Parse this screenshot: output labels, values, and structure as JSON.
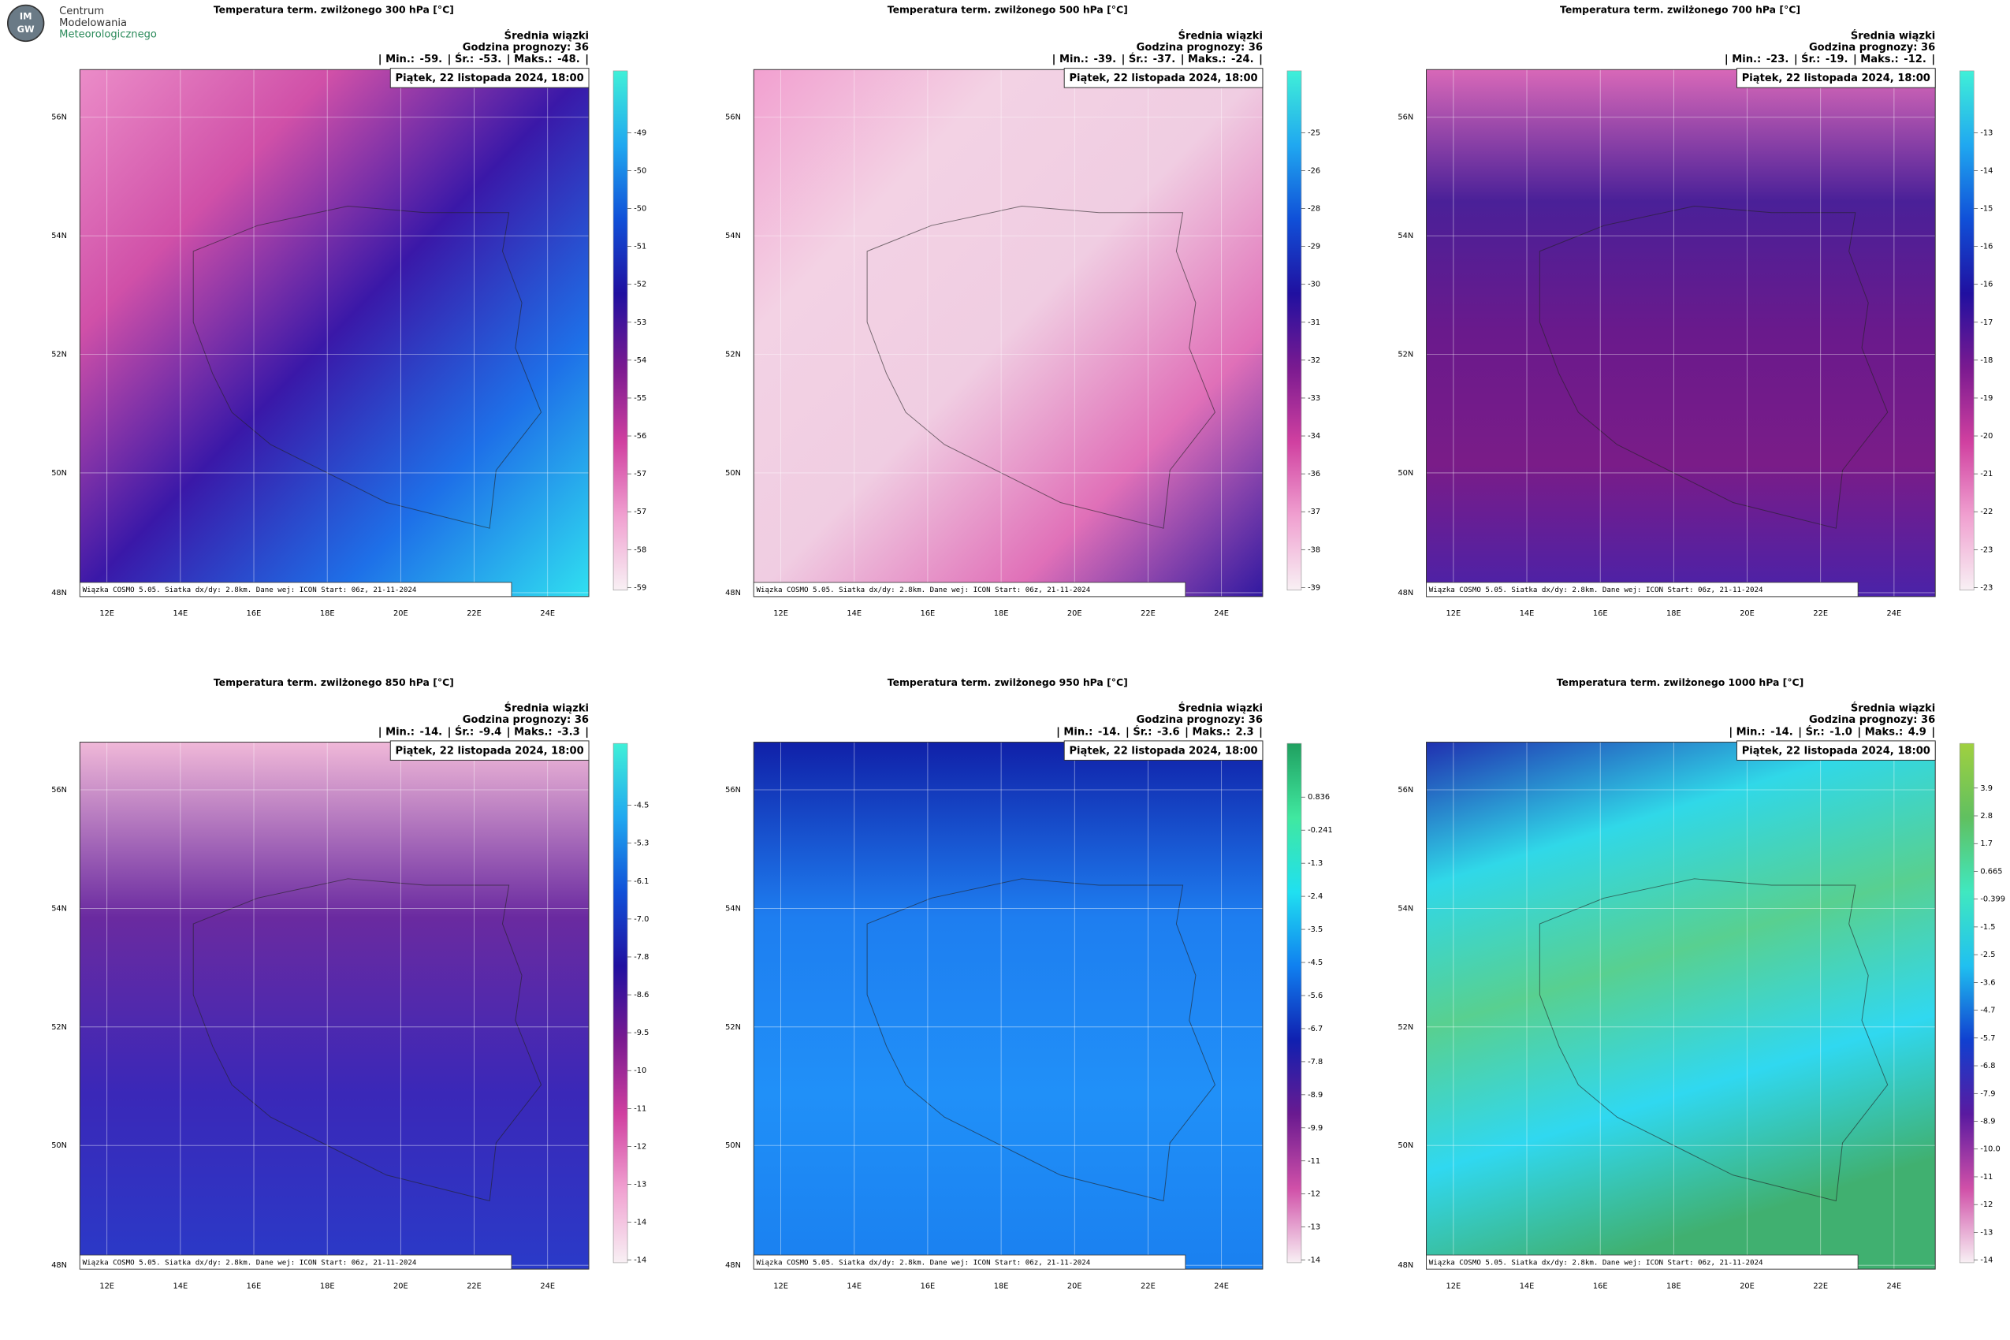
{
  "header": {
    "logo": {
      "abbr_top": "IM",
      "abbr_bottom": "GW",
      "lines": [
        "Centrum",
        "Modelowania",
        "Meteorologicznego"
      ]
    }
  },
  "common": {
    "ensemble": "Średnia wiązki",
    "forecast_hour": "Godzina prognozy: 36",
    "min_label": "| Min.:",
    "mean_label": "| Śr.:",
    "max_label": "| Maks.:",
    "end": "|",
    "date": "Piątek, 22 listopada 2024, 18:00",
    "footer": "Wiązka COSMO 5.05. Siatka dx/dy: 2.8km. Dane wej: ICON Start: 06z, 21-11-2024",
    "lat_labels": [
      "56N",
      "54N",
      "52N",
      "50N",
      "48N"
    ],
    "lon_labels": [
      "12E",
      "14E",
      "16E",
      "18E",
      "20E",
      "22E",
      "24E"
    ]
  },
  "panels": [
    {
      "title": "Temperatura term. zwilżonego 300 hPa [°C]",
      "min": "-59.",
      "mean": "-53.",
      "max": "-48.",
      "colorbar_labels": [
        "-49",
        "-50",
        "-50",
        "-51",
        "-52",
        "-53",
        "-54",
        "-55",
        "-56",
        "-57",
        "-57",
        "-58",
        "-59"
      ],
      "colorbar_colors": [
        "#40f0d8",
        "#20a8f0",
        "#1050d8",
        "#2010a0",
        "#7a1a90",
        "#d040a0",
        "#f0a0d0",
        "#f8f0f4"
      ],
      "map_colors": [
        "#eb8cc8",
        "#d050a8",
        "#3a18a8",
        "#1e70e8",
        "#30e0f0"
      ]
    },
    {
      "title": "Temperatura term. zwilżonego 500 hPa [°C]",
      "min": "-39.",
      "mean": "-37.",
      "max": "-24.",
      "colorbar_labels": [
        "-25",
        "-26",
        "-28",
        "-29",
        "-30",
        "-31",
        "-32",
        "-33",
        "-34",
        "-36",
        "-37",
        "-38",
        "-39"
      ],
      "colorbar_colors": [
        "#40f0d8",
        "#20a8f0",
        "#1050d8",
        "#2010a0",
        "#7a1a90",
        "#d040a0",
        "#f0a0d0",
        "#f8f0f4"
      ],
      "map_colors": [
        "#f2a0d0",
        "#f3d2e4",
        "#f0cde2",
        "#e070b8",
        "#3018a0"
      ]
    },
    {
      "title": "Temperatura term. zwilżonego 700 hPa [°C]",
      "min": "-23.",
      "mean": "-19.",
      "max": "-12.",
      "colorbar_labels": [
        "-13",
        "-14",
        "-15",
        "-16",
        "-16",
        "-17",
        "-18",
        "-19",
        "-20",
        "-21",
        "-22",
        "-23",
        "-23"
      ],
      "colorbar_colors": [
        "#40f0d8",
        "#20a8f0",
        "#1050d8",
        "#2010a0",
        "#7a1a90",
        "#d040a0",
        "#f0a0d0",
        "#f8f0f4"
      ],
      "map_colors": [
        "#d868b8",
        "#4a2098",
        "#6a1a8c",
        "#7a1c88",
        "#4a22a8"
      ]
    },
    {
      "title": "Temperatura term. zwilżonego 850 hPa [°C]",
      "min": "-14.",
      "mean": "-9.4",
      "max": "-3.3",
      "colorbar_labels": [
        "-4.5",
        "-5.3",
        "-6.1",
        "-7.0",
        "-7.8",
        "-8.6",
        "-9.5",
        "-10",
        "-11",
        "-12",
        "-13",
        "-14",
        "-14"
      ],
      "colorbar_colors": [
        "#40f0d8",
        "#20a8f0",
        "#1050d8",
        "#2010a0",
        "#7a1a90",
        "#d040a0",
        "#f0a0d0",
        "#f8f0f4"
      ],
      "map_colors": [
        "#f0b8d8",
        "#6a2aa0",
        "#3a28b8",
        "#2a3ac8"
      ]
    },
    {
      "title": "Temperatura term. zwilżonego 950 hPa [°C]",
      "min": "-14.",
      "mean": "-3.6",
      "max": "2.3",
      "colorbar_labels": [
        "0.836",
        "-0.241",
        "-1.3",
        "-2.4",
        "-3.5",
        "-4.5",
        "-5.6",
        "-6.7",
        "-7.8",
        "-8.9",
        "-9.9",
        "-11",
        "-12",
        "-13",
        "-14"
      ],
      "colorbar_colors": [
        "#20a060",
        "#40e8a0",
        "#20e0f0",
        "#1080f0",
        "#1020b0",
        "#6a1a90",
        "#d050a8",
        "#f8f0f4"
      ],
      "map_colors": [
        "#1020a8",
        "#1e7ef0",
        "#2090f8",
        "#1a80f0"
      ]
    },
    {
      "title": "Temperatura term. zwilżonego 1000 hPa [°C]",
      "min": "-14.",
      "mean": "-1.0",
      "max": "4.9",
      "colorbar_labels": [
        "3.9",
        "2.8",
        "1.7",
        "0.665",
        "-0.399",
        "-1.5",
        "-2.5",
        "-3.6",
        "-4.7",
        "-5.7",
        "-6.8",
        "-7.9",
        "-8.9",
        "-10.0",
        "-11",
        "-12",
        "-13",
        "-14"
      ],
      "colorbar_colors": [
        "#a0d040",
        "#60c060",
        "#40e8c0",
        "#20c0f0",
        "#1040d0",
        "#5a1aa0",
        "#d050a8",
        "#f8f0f4"
      ],
      "map_colors": [
        "#2030b0",
        "#30d8e8",
        "#58d090",
        "#30d8f0",
        "#40b070"
      ]
    }
  ]
}
